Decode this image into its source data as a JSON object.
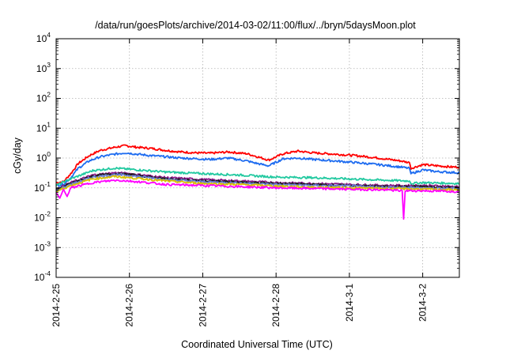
{
  "chart_data": {
    "type": "line",
    "title": "/data/run/goesPlots/archive/2014-03-02/11:00/flux/../bryn/5daysMoon.plot",
    "xlabel": "Coordinated Universal Time (UTC)",
    "ylabel": "cGy/day",
    "y_scale": "log",
    "ylim": [
      0.0001,
      10000
    ],
    "y_ticks": [
      {
        "base": "10",
        "exp": "-4",
        "value": 0.0001
      },
      {
        "base": "10",
        "exp": "-3",
        "value": 0.001
      },
      {
        "base": "10",
        "exp": "-2",
        "value": 0.01
      },
      {
        "base": "10",
        "exp": "-1",
        "value": 0.1
      },
      {
        "base": "10",
        "exp": "0",
        "value": 1
      },
      {
        "base": "10",
        "exp": "1",
        "value": 10
      },
      {
        "base": "10",
        "exp": "2",
        "value": 100
      },
      {
        "base": "10",
        "exp": "3",
        "value": 1000
      },
      {
        "base": "10",
        "exp": "4",
        "value": 10000
      }
    ],
    "x_ticks": [
      "2014-2-25",
      "2014-2-26",
      "2014-2-27",
      "2014-2-28",
      "2014-3-1",
      "2014-3-2"
    ],
    "xlim": [
      0,
      5.5
    ],
    "grid": true,
    "legend": "none",
    "series": [
      {
        "color": "#ff0000",
        "x": [
          0,
          0.1,
          0.2,
          0.3,
          0.45,
          0.6,
          0.8,
          0.95,
          1.1,
          1.3,
          1.5,
          1.7,
          1.9,
          2.1,
          2.35,
          2.6,
          2.75,
          2.9,
          3.1,
          3.3,
          3.5,
          3.8,
          4.1,
          4.4,
          4.7,
          4.82,
          4.84,
          5.0,
          5.2,
          5.4,
          5.5
        ],
        "y": [
          0.15,
          0.16,
          0.3,
          0.65,
          1.2,
          1.8,
          2.3,
          2.6,
          2.3,
          2.1,
          1.8,
          1.6,
          1.5,
          1.45,
          1.6,
          1.4,
          1.1,
          0.85,
          1.4,
          1.7,
          1.5,
          1.35,
          1.2,
          1.0,
          0.8,
          0.7,
          0.45,
          0.6,
          0.55,
          0.5,
          0.5
        ]
      },
      {
        "color": "#1e6cf0",
        "x": [
          0,
          0.1,
          0.2,
          0.3,
          0.45,
          0.6,
          0.8,
          0.95,
          1.1,
          1.3,
          1.5,
          1.7,
          1.9,
          2.1,
          2.35,
          2.6,
          2.75,
          2.9,
          3.1,
          3.3,
          3.5,
          3.8,
          4.1,
          4.4,
          4.7,
          4.82,
          4.84,
          5.0,
          5.2,
          5.4,
          5.5
        ],
        "y": [
          0.12,
          0.13,
          0.22,
          0.45,
          0.8,
          1.1,
          1.35,
          1.5,
          1.35,
          1.2,
          1.1,
          1.0,
          0.95,
          0.9,
          1.0,
          0.8,
          0.65,
          0.55,
          0.95,
          1.0,
          0.9,
          0.8,
          0.7,
          0.6,
          0.5,
          0.45,
          0.3,
          0.4,
          0.35,
          0.33,
          0.32
        ]
      },
      {
        "color": "#22c9a0",
        "x": [
          0,
          0.2,
          0.5,
          0.8,
          1.0,
          1.5,
          2.0,
          2.5,
          3.0,
          3.5,
          4.0,
          4.5,
          4.82,
          4.84,
          5.0,
          5.5
        ],
        "y": [
          0.12,
          0.2,
          0.38,
          0.46,
          0.42,
          0.34,
          0.3,
          0.27,
          0.23,
          0.22,
          0.2,
          0.18,
          0.17,
          0.14,
          0.15,
          0.14
        ]
      },
      {
        "color": "#8b1a8b",
        "x": [
          0,
          0.2,
          0.5,
          0.8,
          1.0,
          1.5,
          2.0,
          2.5,
          3.0,
          3.5,
          4.0,
          4.5,
          4.72,
          4.74,
          4.76,
          5.0,
          5.5
        ],
        "y": [
          0.09,
          0.15,
          0.27,
          0.32,
          0.3,
          0.22,
          0.19,
          0.17,
          0.15,
          0.14,
          0.13,
          0.12,
          0.12,
          0.09,
          0.12,
          0.12,
          0.11
        ]
      },
      {
        "color": "#1a1a1a",
        "x": [
          0,
          0.2,
          0.5,
          0.8,
          1.0,
          1.5,
          2.0,
          2.5,
          3.0,
          3.5,
          4.0,
          4.5,
          5.0,
          5.5
        ],
        "y": [
          0.085,
          0.14,
          0.25,
          0.3,
          0.28,
          0.2,
          0.17,
          0.155,
          0.14,
          0.13,
          0.12,
          0.11,
          0.11,
          0.1
        ]
      },
      {
        "color": "#6a7fd6",
        "x": [
          0,
          0.2,
          0.5,
          0.8,
          1.0,
          1.5,
          2.0,
          2.5,
          3.0,
          3.5,
          4.0,
          4.5,
          5.0,
          5.5
        ],
        "y": [
          0.08,
          0.13,
          0.23,
          0.28,
          0.26,
          0.19,
          0.16,
          0.145,
          0.13,
          0.12,
          0.115,
          0.105,
          0.1,
          0.095
        ]
      },
      {
        "color": "#d8c000",
        "x": [
          0,
          0.2,
          0.5,
          0.8,
          1.0,
          1.5,
          2.0,
          2.5,
          3.0,
          3.5,
          4.0,
          4.5,
          5.0,
          5.5
        ],
        "y": [
          0.075,
          0.12,
          0.2,
          0.24,
          0.22,
          0.17,
          0.14,
          0.13,
          0.115,
          0.105,
          0.1,
          0.095,
          0.09,
          0.085
        ]
      },
      {
        "color": "#ff00ff",
        "x": [
          0,
          0.05,
          0.1,
          0.15,
          0.2,
          0.5,
          0.8,
          1.0,
          1.5,
          2.0,
          2.5,
          3.0,
          3.5,
          4.0,
          4.5,
          4.72,
          4.74,
          4.76,
          5.0,
          5.5
        ],
        "y": [
          0.07,
          0.045,
          0.09,
          0.05,
          0.1,
          0.15,
          0.18,
          0.17,
          0.13,
          0.12,
          0.11,
          0.1,
          0.095,
          0.09,
          0.085,
          0.08,
          0.009,
          0.08,
          0.08,
          0.075
        ]
      }
    ]
  }
}
